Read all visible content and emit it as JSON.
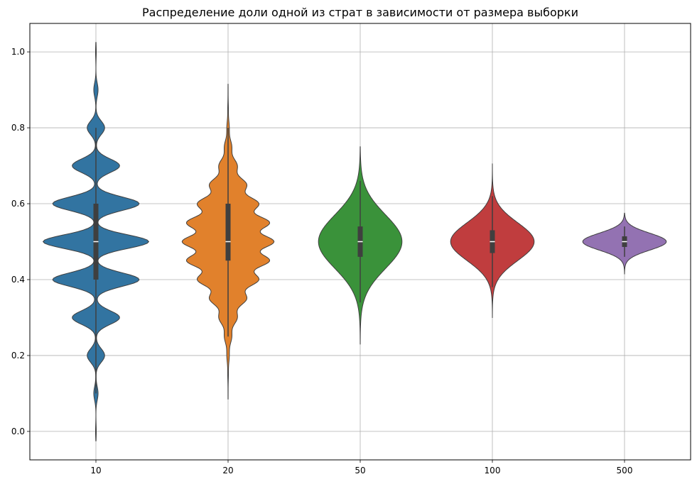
{
  "chart_data": {
    "type": "violin",
    "title": "Распределение доли одной из страт в зависимости от размера выборки",
    "xlabel": "",
    "ylabel": "",
    "categories": [
      "10",
      "20",
      "50",
      "100",
      "500"
    ],
    "ylim": [
      -0.075,
      1.075
    ],
    "yticks": [
      0.0,
      0.2,
      0.4,
      0.6,
      0.8,
      1.0
    ],
    "ytick_labels": [
      "0.0",
      "0.2",
      "0.4",
      "0.6",
      "0.8",
      "1.0"
    ],
    "grid": true,
    "legend": "none",
    "violins": [
      {
        "category": "10",
        "color": "#3274a1",
        "median": 0.5,
        "q1": 0.4,
        "q3": 0.6,
        "whisker_low": 0.1,
        "whisker_high": 0.8,
        "min": -0.025,
        "max": 1.025
      },
      {
        "category": "20",
        "color": "#e1812c",
        "median": 0.5,
        "q1": 0.45,
        "q3": 0.6,
        "whisker_low": 0.25,
        "whisker_high": 0.8,
        "min": 0.085,
        "max": 0.915
      },
      {
        "category": "50",
        "color": "#3a923a",
        "median": 0.5,
        "q1": 0.46,
        "q3": 0.54,
        "whisker_low": 0.34,
        "whisker_high": 0.66,
        "min": 0.23,
        "max": 0.75
      },
      {
        "category": "100",
        "color": "#c03d3e",
        "median": 0.5,
        "q1": 0.47,
        "q3": 0.53,
        "whisker_low": 0.38,
        "whisker_high": 0.62,
        "min": 0.3,
        "max": 0.705
      },
      {
        "category": "500",
        "color": "#9372b2",
        "median": 0.5,
        "q1": 0.486,
        "q3": 0.514,
        "whisker_low": 0.46,
        "whisker_high": 0.54,
        "min": 0.415,
        "max": 0.575
      }
    ]
  }
}
